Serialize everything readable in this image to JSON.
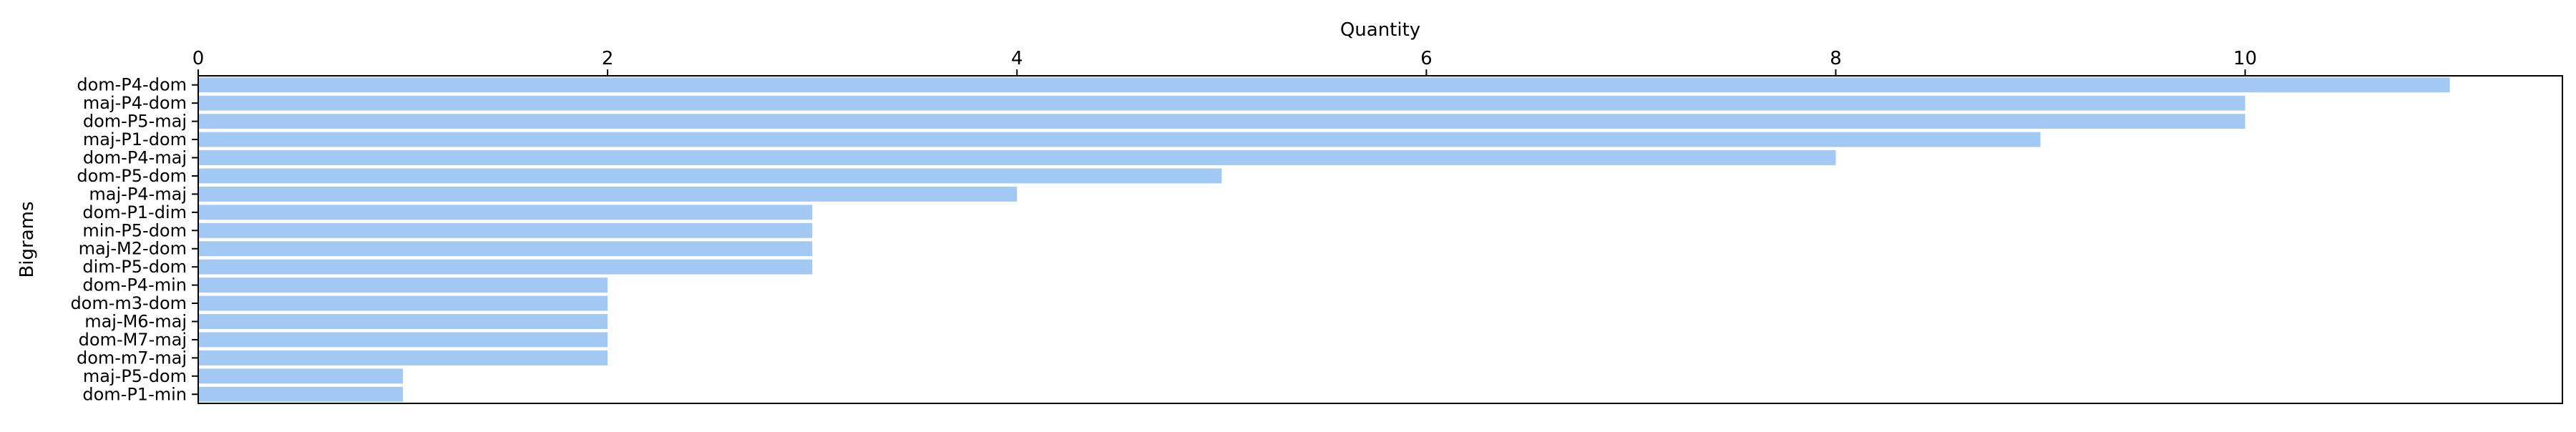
{
  "chart_data": {
    "type": "bar",
    "orientation": "horizontal",
    "xlabel": "Quantity",
    "ylabel": "Bigrams",
    "x_axis_position": "top",
    "xlim": [
      0,
      11.55
    ],
    "xticks": [
      0,
      2,
      4,
      6,
      8,
      10
    ],
    "grid": false,
    "legend": "none",
    "bar_color": "#a1c9f4",
    "categories": [
      "dom-P4-dom",
      "maj-P4-dom",
      "dom-P5-maj",
      "maj-P1-dom",
      "dom-P4-maj",
      "dom-P5-dom",
      "maj-P4-maj",
      "dom-P1-dim",
      "min-P5-dom",
      "maj-M2-dom",
      "dim-P5-dom",
      "dom-P4-min",
      "dom-m3-dom",
      "maj-M6-maj",
      "dom-M7-maj",
      "dom-m7-maj",
      "maj-P5-dom",
      "dom-P1-min"
    ],
    "values": [
      11,
      10,
      10,
      9,
      8,
      5,
      4,
      3,
      3,
      3,
      3,
      2,
      2,
      2,
      2,
      2,
      1,
      1
    ]
  }
}
